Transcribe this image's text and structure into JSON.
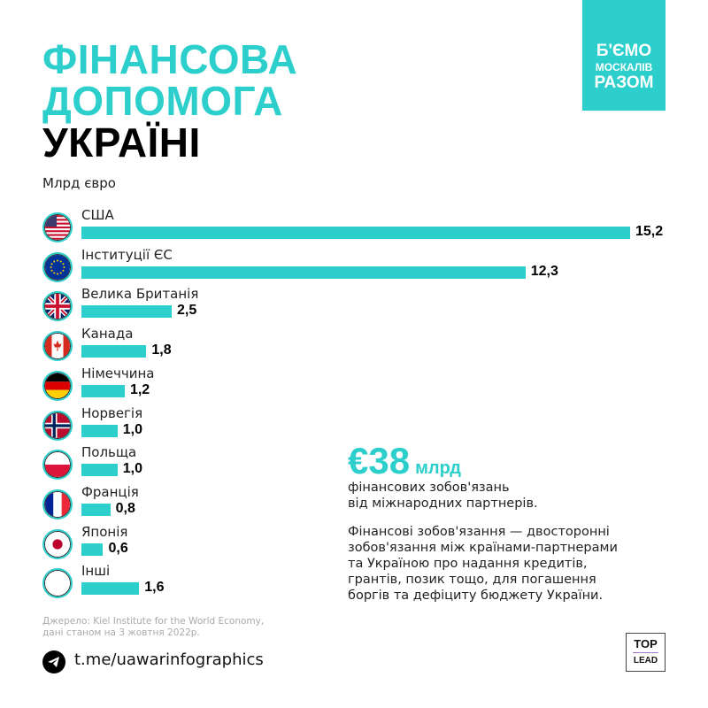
{
  "title": {
    "line1": "ФІНАНСОВА",
    "line2": "ДОПОМОГА",
    "line3": "УКРАЇНІ"
  },
  "badge": {
    "line1": "Б'ЄМО",
    "line2": "МОСКАЛІВ",
    "line3": "РАЗОМ"
  },
  "colors": {
    "accent": "#2ccfcb",
    "text": "#111111"
  },
  "chart_data": {
    "type": "bar",
    "orientation": "horizontal",
    "ylabel": "Млрд євро",
    "categories": [
      "США",
      "Інституції ЄС",
      "Велика Британія",
      "Канада",
      "Німеччина",
      "Норвегія",
      "Польща",
      "Франція",
      "Японія",
      "Інші"
    ],
    "values": [
      15.2,
      12.3,
      2.5,
      1.8,
      1.2,
      1.0,
      1.0,
      0.8,
      0.6,
      1.6
    ],
    "data_labels": [
      "15,2",
      "12,3",
      "2,5",
      "1,8",
      "1,2",
      "1,0",
      "1,0",
      "0,8",
      "0,6",
      "1,6"
    ],
    "icons": [
      "flag-usa",
      "flag-eu",
      "flag-uk",
      "flag-canada",
      "flag-germany",
      "flag-norway",
      "flag-poland",
      "flag-france",
      "flag-japan",
      "blank-circle"
    ]
  },
  "summary": {
    "amount": "€38",
    "unit": "млрд",
    "line1": "фінансових зобов'язань",
    "line2": "від міжнародних партнерів."
  },
  "definition": [
    "Фінансові зобов'язання — двосторонні",
    "зобов'язання між країнами-партнерами",
    "та Україною про надання кредитів,",
    "грантів, позик тощо, для погашення",
    "боргів та дефіциту бюджету України."
  ],
  "source": {
    "line1": "Джерело: Kiel Institute for the World Economy,",
    "line2": "дані станом на 3 жовтня 2022р."
  },
  "telegram": {
    "link": "t.me/uawarinfographics",
    "icon": "telegram-icon"
  },
  "logo": {
    "top": "TOP",
    "bottom": "LEAD"
  }
}
